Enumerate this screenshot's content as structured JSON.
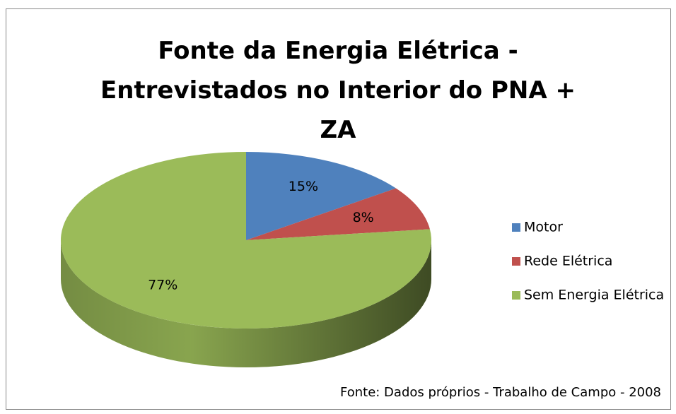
{
  "chart_data": {
    "type": "pie",
    "title": "Fonte da Energia Elétrica - Entrevistados no Interior do PNA + ZA",
    "categories": [
      "Motor",
      "Rede Elétrica",
      "Sem Energia Elétrica"
    ],
    "values": [
      15,
      8,
      77
    ],
    "value_labels": [
      "15%",
      "8%",
      "77%"
    ],
    "colors": [
      "#4f81bd",
      "#c0504d",
      "#9bbb59"
    ],
    "legend": "right",
    "annotation": "Fonte: Dados próprios - Trabalho de Campo - 2008"
  }
}
